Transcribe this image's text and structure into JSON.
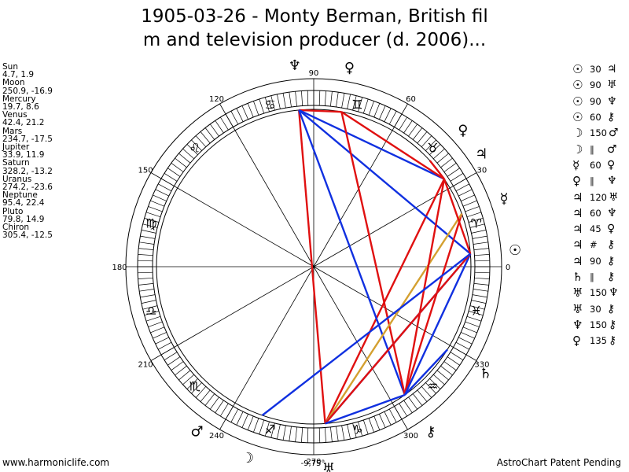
{
  "title": {
    "line1": "1905-03-26 - Monty Berman, British fil",
    "line2": "m and television producer (d. 2006)..."
  },
  "planets": [
    {
      "name": "Sun",
      "coords": "4.7, 1.9",
      "lon": 4.7,
      "glyph": "☉"
    },
    {
      "name": "Moon",
      "coords": "250.9, -16.9",
      "lon": 250.9,
      "glyph": "☽"
    },
    {
      "name": "Mercury",
      "coords": "19.7, 8.6",
      "lon": 19.7,
      "glyph": "☿"
    },
    {
      "name": "Venus",
      "coords": "42.4, 21.2",
      "lon": 42.4,
      "glyph": "♀"
    },
    {
      "name": "Mars",
      "coords": "234.7, -17.5",
      "lon": 234.7,
      "glyph": "♂"
    },
    {
      "name": "Jupiter",
      "coords": "33.9, 11.9",
      "lon": 33.9,
      "glyph": "♃"
    },
    {
      "name": "Saturn",
      "coords": "328.2, -13.2",
      "lon": 328.2,
      "glyph": "♄"
    },
    {
      "name": "Uranus",
      "coords": "274.2, -23.6",
      "lon": 274.2,
      "glyph": "♅"
    },
    {
      "name": "Neptune",
      "coords": "95.4, 22.4",
      "lon": 95.4,
      "glyph": "♆"
    },
    {
      "name": "Pluto",
      "coords": "79.8, 14.9",
      "lon": 79.8,
      "glyph": "♀"
    },
    {
      "name": "Chiron",
      "coords": "305.4, -12.5",
      "lon": 305.4,
      "glyph": "⚷"
    }
  ],
  "aspects": [
    {
      "p1": "☉",
      "angle": "30",
      "p2": "♃"
    },
    {
      "p1": "☉",
      "angle": "90",
      "p2": "♅"
    },
    {
      "p1": "☉",
      "angle": "90",
      "p2": "♆"
    },
    {
      "p1": "☉",
      "angle": "60",
      "p2": "⚷"
    },
    {
      "p1": "☽",
      "angle": "150",
      "p2": "♂"
    },
    {
      "p1": "☽",
      "angle": "∥",
      "p2": "♂"
    },
    {
      "p1": "☿",
      "angle": "60",
      "p2": "♀"
    },
    {
      "p1": "♀",
      "angle": "∥",
      "p2": "♆"
    },
    {
      "p1": "♃",
      "angle": "120",
      "p2": "♅"
    },
    {
      "p1": "♃",
      "angle": "60",
      "p2": "♆"
    },
    {
      "p1": "♃",
      "angle": "45",
      "p2": "♀"
    },
    {
      "p1": "♃",
      "angle": "#",
      "p2": "⚷"
    },
    {
      "p1": "♃",
      "angle": "90",
      "p2": "⚷"
    },
    {
      "p1": "♄",
      "angle": "∥",
      "p2": "⚷"
    },
    {
      "p1": "♅",
      "angle": "150",
      "p2": "♆"
    },
    {
      "p1": "♅",
      "angle": "30",
      "p2": "⚷"
    },
    {
      "p1": "♆",
      "angle": "150",
      "p2": "⚷"
    },
    {
      "p1": "♀",
      "angle": "135",
      "p2": "⚷"
    }
  ],
  "wheel": {
    "degree_labels": [
      "0",
      "30",
      "60",
      "90",
      "120",
      "150",
      "180",
      "210",
      "240",
      "270",
      "300",
      "330"
    ],
    "bottom_label": "-9,75°",
    "signs": [
      "♈",
      "♉",
      "♊",
      "♋",
      "♌",
      "♍",
      "♎",
      "♏",
      "♐",
      "♑",
      "♒",
      "♓"
    ],
    "aspect_lines": [
      {
        "a": "Jupiter",
        "b": "Uranus",
        "color": "#e01010"
      },
      {
        "a": "Neptune",
        "b": "Uranus",
        "color": "#e01010"
      },
      {
        "a": "Neptune",
        "b": "Chiron",
        "color": "#1030e0"
      },
      {
        "a": "Neptune",
        "b": "Pluto",
        "color": "#e01010"
      },
      {
        "a": "Neptune",
        "b": "Sun",
        "color": "#1030e0"
      },
      {
        "a": "Neptune",
        "b": "Jupiter",
        "color": "#1030e0"
      },
      {
        "a": "Pluto",
        "b": "Jupiter",
        "color": "#e01010"
      },
      {
        "a": "Pluto",
        "b": "Chiron",
        "color": "#e01010"
      },
      {
        "a": "Venus",
        "b": "Jupiter",
        "color": "#e01010"
      },
      {
        "a": "Mercury",
        "b": "Chiron",
        "color": "#e01010"
      },
      {
        "a": "Mercury",
        "b": "Uranus",
        "color": "#d4a030"
      },
      {
        "a": "Jupiter",
        "b": "Chiron",
        "color": "#e01010"
      },
      {
        "a": "Sun",
        "b": "Chiron",
        "color": "#1030e0"
      },
      {
        "a": "Sun",
        "b": "Uranus",
        "color": "#1030e0"
      },
      {
        "a": "Sun",
        "b": "Uranus",
        "color": "#e01010"
      },
      {
        "a": "Sun",
        "b": "Jupiter",
        "color": "#e01010"
      },
      {
        "a": "Uranus",
        "b": "Chiron",
        "color": "#1030e0"
      },
      {
        "a": "Chiron",
        "b": "Saturn",
        "color": "#1030e0"
      },
      {
        "a": "Sun",
        "b": "Moon",
        "color": "#1030e0"
      }
    ]
  },
  "footer": {
    "left": "www.harmoniclife.com",
    "right": "AstroChart Patent Pending"
  }
}
